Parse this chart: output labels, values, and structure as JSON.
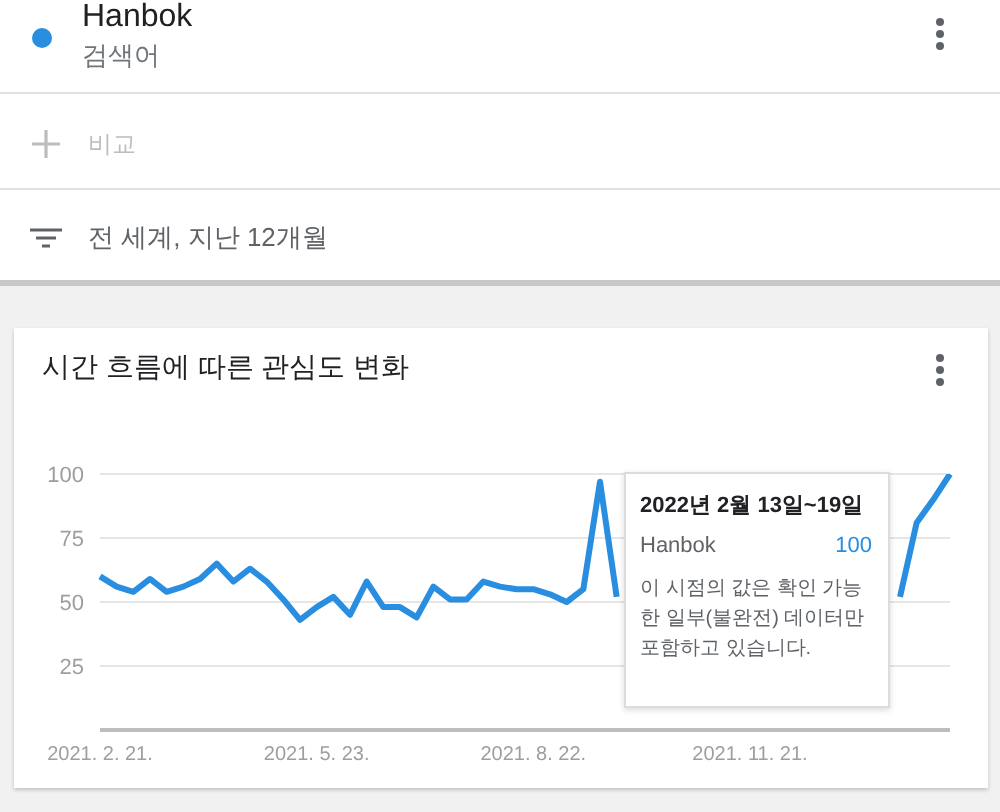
{
  "chart_data": {
    "type": "line",
    "title": "시간 흐름에 따른 관심도 변화",
    "categories": [
      "2021. 2. 21.",
      null,
      null,
      null,
      null,
      null,
      null,
      null,
      null,
      null,
      null,
      null,
      null,
      "2021. 5. 23.",
      null,
      null,
      null,
      null,
      null,
      null,
      null,
      null,
      null,
      null,
      null,
      null,
      "2021. 8. 22.",
      null,
      null,
      null,
      null,
      null,
      null,
      null,
      null,
      null,
      null,
      null,
      null,
      "2021. 11. 21.",
      null,
      null,
      null,
      null,
      null,
      null,
      null,
      null,
      null,
      null,
      null,
      null
    ],
    "series": [
      {
        "name": "Hanbok",
        "color": "#2a8ee0",
        "values": [
          60,
          56,
          54,
          59,
          54,
          56,
          59,
          65,
          58,
          63,
          58,
          51,
          43,
          48,
          52,
          45,
          58,
          48,
          48,
          44,
          56,
          51,
          51,
          58,
          56,
          55,
          55,
          53,
          50,
          55,
          97,
          52,
          null,
          null,
          null,
          null,
          null,
          null,
          null,
          null,
          null,
          null,
          null,
          null,
          null,
          null,
          null,
          null,
          52,
          81,
          90,
          100
        ]
      }
    ],
    "ylim": [
      0,
      100
    ],
    "yticks": [
      25,
      50,
      75,
      100
    ],
    "grid": "y",
    "legend": "top",
    "marker": "none",
    "line_style": "solid",
    "annotations": [
      "검색어",
      "비교",
      "전 세계, 지난 12개월",
      "2022년 2월 13일~19일",
      "100",
      "이 시점의 값은 확인 가능한 일부(불완전) 데이터만 포함하고 있습니다."
    ]
  }
}
